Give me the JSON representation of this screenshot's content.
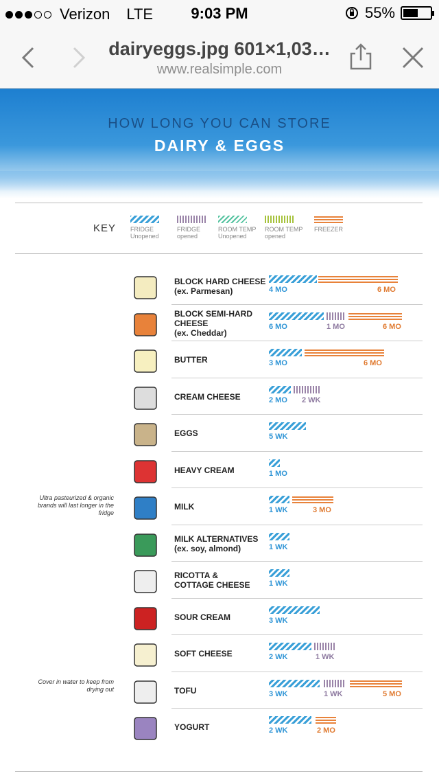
{
  "status_bar": {
    "carrier": "Verizon",
    "network": "LTE",
    "time": "9:03 PM",
    "battery": "55%",
    "battery_level": 0.55,
    "signal_bars_filled": 3,
    "signal_bars_total": 5
  },
  "nav_bar": {
    "title": "dairyeggs.jpg 601×1,03…",
    "subtitle": "www.realsimple.com",
    "icons": [
      "back-icon",
      "forward-icon",
      "share-icon",
      "close-icon"
    ]
  },
  "infographic": {
    "heading_top": "HOW LONG YOU CAN STORE",
    "heading_main": "DAIRY & EGGS",
    "key": {
      "label": "KEY",
      "items": [
        {
          "title": "FRIDGE",
          "sub": "Unopened",
          "style": "fridge-unopened"
        },
        {
          "title": "FRIDGE",
          "sub": "opened",
          "style": "fridge-opened"
        },
        {
          "title": "ROOM TEMP",
          "sub": "Unopened",
          "style": "room-unopened"
        },
        {
          "title": "ROOM TEMP",
          "sub": "opened",
          "style": "room-opened"
        },
        {
          "title": "FREEZER",
          "sub": "",
          "style": "freezer"
        }
      ]
    },
    "colors": {
      "fridge_unopened": "#3aa0d8",
      "fridge_opened": "#9a84a8",
      "room_unopened": "#55c3a0",
      "room_opened": "#a6c23c",
      "freezer": "#e8823a"
    },
    "items": [
      {
        "name1": "BLOCK HARD CHEESE",
        "name2": "(ex. Parmesan)",
        "name3": "",
        "icon": "cheese-wedge-icon",
        "note": "",
        "durations": [
          {
            "type": "fridge-unopened",
            "text": "4 MO"
          },
          {
            "type": "freezer",
            "text": "6 MO"
          }
        ]
      },
      {
        "name1": "BLOCK SEMI-HARD",
        "name2": "CHEESE",
        "name3": "(ex. Cheddar)",
        "icon": "cheddar-icon",
        "note": "",
        "durations": [
          {
            "type": "fridge-unopened",
            "text": "6 MO"
          },
          {
            "type": "fridge-opened",
            "text": "1 MO"
          },
          {
            "type": "freezer",
            "text": "6 MO"
          }
        ]
      },
      {
        "name1": "BUTTER",
        "name2": "",
        "name3": "",
        "icon": "butter-icon",
        "note": "",
        "durations": [
          {
            "type": "fridge-unopened",
            "text": "3 MO"
          },
          {
            "type": "freezer",
            "text": "6 MO"
          }
        ]
      },
      {
        "name1": "CREAM CHEESE",
        "name2": "",
        "name3": "",
        "icon": "cream-cheese-icon",
        "note": "",
        "durations": [
          {
            "type": "fridge-unopened",
            "text": "2 MO"
          },
          {
            "type": "fridge-opened",
            "text": "2 WK"
          }
        ]
      },
      {
        "name1": "EGGS",
        "name2": "",
        "name3": "",
        "icon": "egg-carton-icon",
        "note": "",
        "durations": [
          {
            "type": "fridge-unopened",
            "text": "5 WK"
          }
        ]
      },
      {
        "name1": "HEAVY CREAM",
        "name2": "",
        "name3": "",
        "icon": "cream-carton-icon",
        "note": "",
        "durations": [
          {
            "type": "fridge-unopened",
            "text": "1 MO"
          }
        ]
      },
      {
        "name1": "MILK",
        "name2": "",
        "name3": "",
        "icon": "milk-carton-icon",
        "note": "Ultra pasteurized & organic brands will last longer in the fridge",
        "durations": [
          {
            "type": "fridge-unopened",
            "text": "1 WK"
          },
          {
            "type": "freezer",
            "text": "3 MO"
          }
        ]
      },
      {
        "name1": "MILK ALTERNATIVES",
        "name2": "(ex. soy, almond)",
        "name3": "",
        "icon": "soy-milk-icon",
        "note": "",
        "durations": [
          {
            "type": "fridge-unopened",
            "text": "1 WK"
          }
        ]
      },
      {
        "name1": "RICOTTA &",
        "name2": "COTTAGE CHEESE",
        "name3": "",
        "icon": "ricotta-tub-icon",
        "note": "",
        "durations": [
          {
            "type": "fridge-unopened",
            "text": "1 WK"
          }
        ]
      },
      {
        "name1": "SOUR CREAM",
        "name2": "",
        "name3": "",
        "icon": "sour-cream-icon",
        "note": "",
        "durations": [
          {
            "type": "fridge-unopened",
            "text": "3 WK"
          }
        ]
      },
      {
        "name1": "SOFT CHEESE",
        "name2": "",
        "name3": "",
        "icon": "soft-cheese-icon",
        "note": "",
        "durations": [
          {
            "type": "fridge-unopened",
            "text": "2 WK"
          },
          {
            "type": "fridge-opened",
            "text": "1 WK"
          }
        ]
      },
      {
        "name1": "TOFU",
        "name2": "",
        "name3": "",
        "icon": "tofu-icon",
        "note": "Cover in water to keep from drying out",
        "durations": [
          {
            "type": "fridge-unopened",
            "text": "3 WK"
          },
          {
            "type": "fridge-opened",
            "text": "1 WK"
          },
          {
            "type": "freezer",
            "text": "5 MO"
          }
        ]
      },
      {
        "name1": "YOGURT",
        "name2": "",
        "name3": "",
        "icon": "yogurt-icon",
        "note": "",
        "durations": [
          {
            "type": "fridge-unopened",
            "text": "2 WK"
          },
          {
            "type": "freezer",
            "text": "2 MO"
          }
        ]
      }
    ]
  }
}
